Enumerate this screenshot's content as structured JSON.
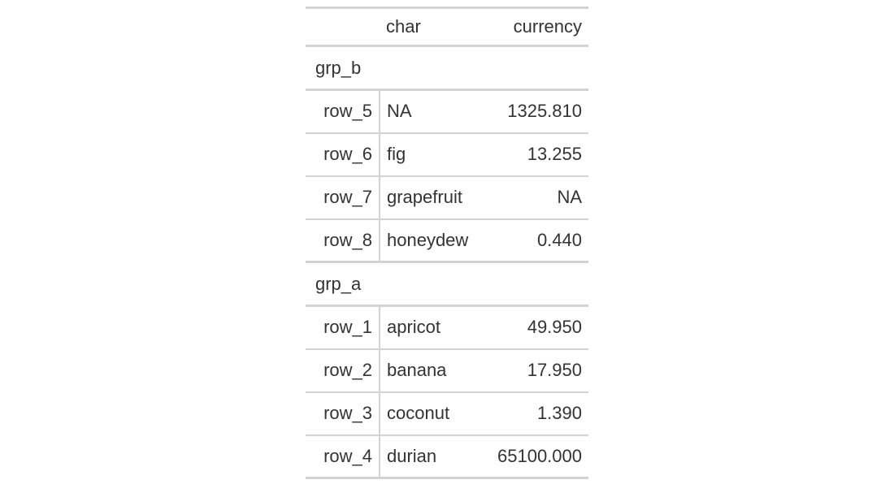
{
  "columns": {
    "stub": "",
    "char": "char",
    "currency": "currency"
  },
  "groups": [
    {
      "label": "grp_b",
      "rows": [
        {
          "stub": "row_5",
          "char": "NA",
          "currency": "1325.810"
        },
        {
          "stub": "row_6",
          "char": "fig",
          "currency": "13.255"
        },
        {
          "stub": "row_7",
          "char": "grapefruit",
          "currency": "NA"
        },
        {
          "stub": "row_8",
          "char": "honeydew",
          "currency": "0.440"
        }
      ]
    },
    {
      "label": "grp_a",
      "rows": [
        {
          "stub": "row_1",
          "char": "apricot",
          "currency": "49.950"
        },
        {
          "stub": "row_2",
          "char": "banana",
          "currency": "17.950"
        },
        {
          "stub": "row_3",
          "char": "coconut",
          "currency": "1.390"
        },
        {
          "stub": "row_4",
          "char": "durian",
          "currency": "65100.000"
        }
      ]
    }
  ]
}
